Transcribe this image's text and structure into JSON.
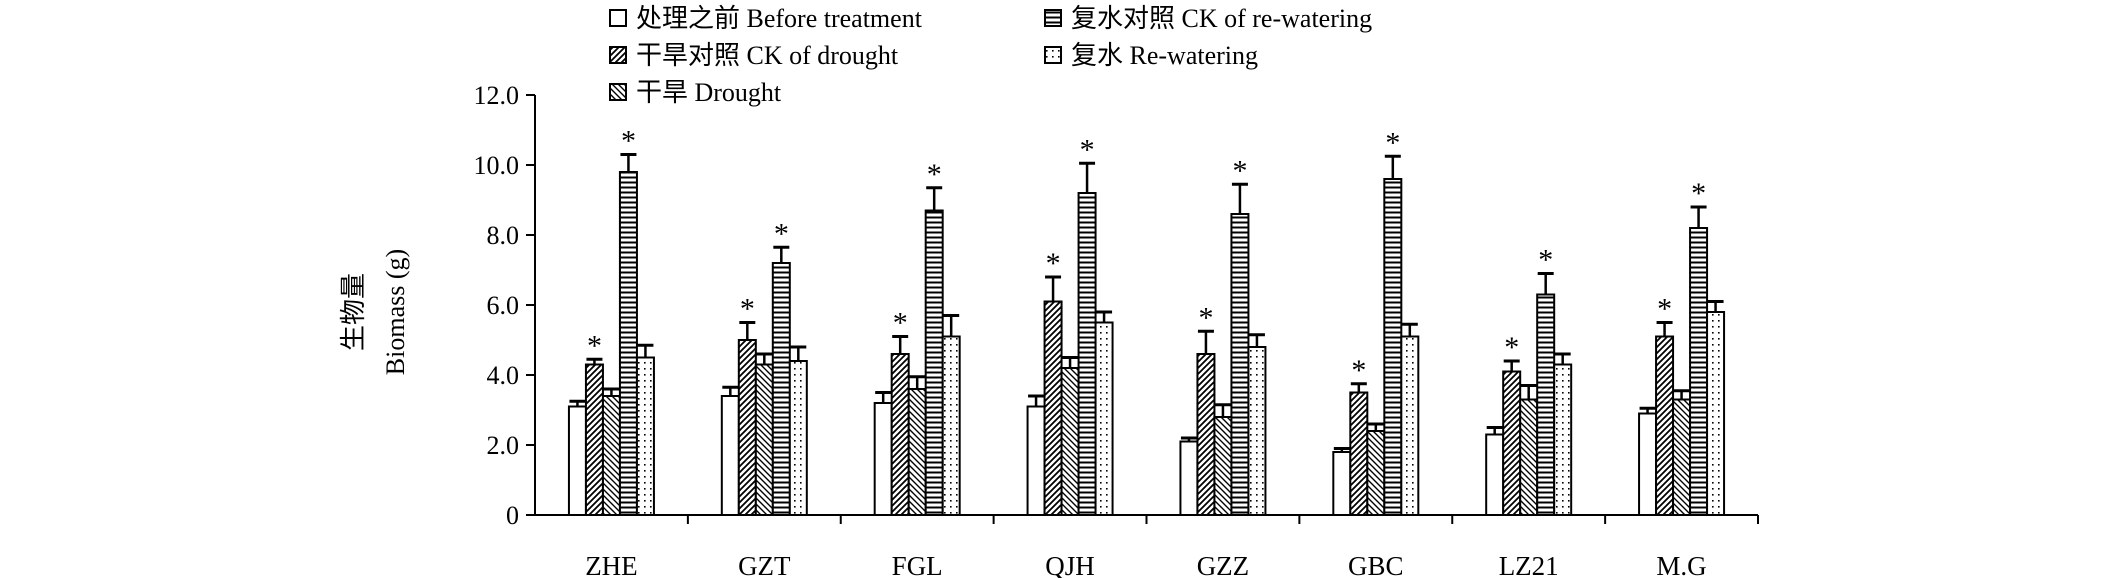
{
  "chart_data": {
    "type": "bar",
    "title": "",
    "ylabel_cn": "生物量",
    "ylabel": "Biomass (g)",
    "xlabel": "",
    "ylim": [
      0,
      12
    ],
    "yticks": [
      0,
      2,
      4,
      6,
      8,
      10,
      12
    ],
    "ytick_labels": [
      "0",
      "2.0",
      "4.0",
      "6.0",
      "8.0",
      "10.0",
      "12.0"
    ],
    "grid": false,
    "legend_position": "top",
    "categories": [
      "ZHE",
      "GZT",
      "FGL",
      "QJH",
      "GZZ",
      "GBC",
      "LZ21",
      "M.G"
    ],
    "series": [
      {
        "name": "处理之前 Before treatment",
        "pattern": "none",
        "values": [
          3.1,
          3.4,
          3.2,
          3.1,
          2.1,
          1.8,
          2.3,
          2.9
        ],
        "errors": [
          0.15,
          0.25,
          0.3,
          0.3,
          0.1,
          0.1,
          0.2,
          0.15
        ],
        "sig": [
          false,
          false,
          false,
          false,
          false,
          false,
          false,
          false
        ]
      },
      {
        "name": "干旱对照 CK of drought",
        "pattern": "diag",
        "values": [
          4.3,
          5.0,
          4.6,
          6.1,
          4.6,
          3.5,
          4.1,
          5.1
        ],
        "errors": [
          0.15,
          0.5,
          0.5,
          0.7,
          0.65,
          0.25,
          0.3,
          0.4
        ],
        "sig": [
          true,
          true,
          true,
          true,
          true,
          true,
          true,
          true
        ]
      },
      {
        "name": "干旱 Drought",
        "pattern": "antidiag",
        "values": [
          3.4,
          4.3,
          3.6,
          4.2,
          2.8,
          2.4,
          3.3,
          3.3
        ],
        "errors": [
          0.2,
          0.3,
          0.35,
          0.3,
          0.35,
          0.2,
          0.4,
          0.25
        ],
        "sig": [
          false,
          false,
          false,
          false,
          false,
          false,
          false,
          false
        ]
      },
      {
        "name": "复水对照 CK of re-watering",
        "pattern": "hlines",
        "values": [
          9.8,
          7.2,
          8.7,
          9.2,
          8.6,
          9.6,
          6.3,
          8.2
        ],
        "errors": [
          0.5,
          0.45,
          0.65,
          0.85,
          0.85,
          0.65,
          0.6,
          0.6
        ],
        "sig": [
          true,
          true,
          true,
          true,
          true,
          true,
          true,
          true
        ]
      },
      {
        "name": "复水 Re-watering",
        "pattern": "dots",
        "values": [
          4.5,
          4.4,
          5.1,
          5.5,
          4.8,
          5.1,
          4.3,
          5.8
        ],
        "errors": [
          0.35,
          0.4,
          0.6,
          0.3,
          0.35,
          0.35,
          0.3,
          0.3
        ],
        "sig": [
          false,
          false,
          false,
          false,
          false,
          false,
          false,
          false
        ]
      }
    ],
    "significance_marker": "*"
  }
}
